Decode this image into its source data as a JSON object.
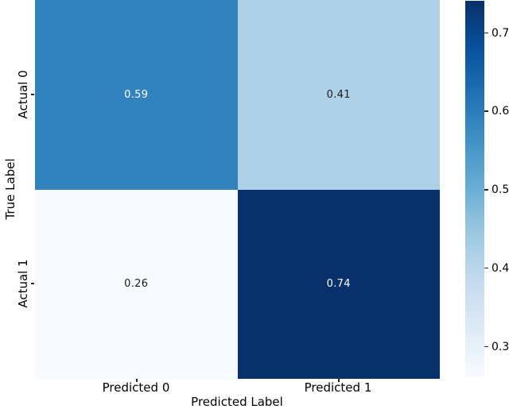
{
  "chart_data": {
    "type": "heatmap",
    "title": "",
    "rows": [
      "Actual 0",
      "Actual 1"
    ],
    "columns": [
      "Predicted 0",
      "Predicted 1"
    ],
    "values": [
      [
        0.59,
        0.41
      ],
      [
        0.26,
        0.74
      ]
    ],
    "xlabel": "Predicted Label",
    "ylabel": "True Label",
    "colormap": "Blues",
    "cell_colors": [
      [
        "#3282bd",
        "#afd1e7"
      ],
      [
        "#f7fbff",
        "#08306b"
      ]
    ],
    "annot_colors": [
      [
        "#ffffff",
        "#1a1a1a"
      ],
      [
        "#1a1a1a",
        "#ffffff"
      ]
    ],
    "annotation_format": "2dp",
    "grid": false,
    "colorbar": {
      "position": "right",
      "range": [
        0.26,
        0.74
      ],
      "ticks": [
        0.3,
        0.4,
        0.5,
        0.6,
        0.7
      ],
      "gradient_bottom_to_top": [
        "#f7fbff",
        "#deebf7",
        "#c6dbef",
        "#9ecae1",
        "#6baed6",
        "#4292c6",
        "#2171b5",
        "#08519c",
        "#08306b"
      ]
    }
  },
  "colors": {
    "background": "#ffffff",
    "tick_color": "#262626",
    "label_color": "#000000"
  }
}
